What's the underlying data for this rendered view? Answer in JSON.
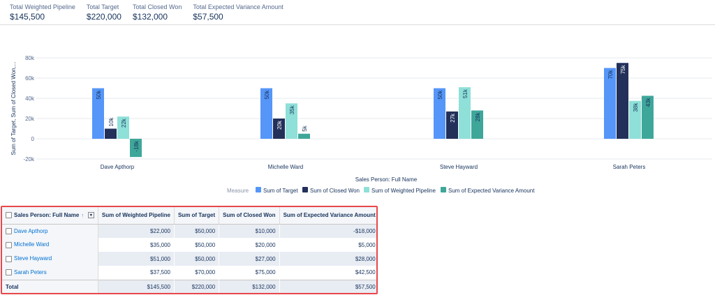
{
  "kpis": [
    {
      "label": "Total Weighted Pipeline",
      "value": "$145,500"
    },
    {
      "label": "Total Target",
      "value": "$220,000"
    },
    {
      "label": "Total Closed Won",
      "value": "$132,000"
    },
    {
      "label": "Total Expected Variance Amount",
      "value": "$57,500"
    }
  ],
  "chart_data": {
    "type": "bar",
    "xlabel": "Sales Person: Full Name",
    "ylabel": "Sum of Target, Sum of Closed Won,...",
    "ylim": [
      -20000,
      80000
    ],
    "yticks": [
      "-20k",
      "0",
      "20k",
      "40k",
      "60k",
      "80k"
    ],
    "grid": true,
    "legend_title": "Measure",
    "legend_position": "bottom",
    "categories": [
      "Dave Apthorp",
      "Michelle Ward",
      "Steve Hayward",
      "Sarah Peters"
    ],
    "series": [
      {
        "name": "Sum of Target",
        "color": "#5596f8",
        "values": [
          50000,
          50000,
          50000,
          70000
        ],
        "labels": [
          "50k",
          "50k",
          "50k",
          "70k"
        ]
      },
      {
        "name": "Sum of Closed Won",
        "color": "#22305a",
        "values": [
          10000,
          20000,
          27000,
          75000
        ],
        "labels": [
          "10k",
          "20k",
          "27k",
          "75k"
        ]
      },
      {
        "name": "Sum of Weighted Pipeline",
        "color": "#8ee0d8",
        "values": [
          22000,
          35000,
          51000,
          37500
        ],
        "labels": [
          "22k",
          "35k",
          "51k",
          "38k"
        ]
      },
      {
        "name": "Sum of Expected Variance Amount",
        "color": "#3fa69a",
        "values": [
          -18000,
          5000,
          28000,
          42500
        ],
        "labels": [
          "-18k",
          "5k",
          "28k",
          "43k"
        ]
      }
    ]
  },
  "table": {
    "headers": [
      "Sales Person: Full Name",
      "Sum of Weighted Pipeline",
      "Sum of Target",
      "Sum of Closed Won",
      "Sum of Expected Variance Amount"
    ],
    "sort_icon": "↑",
    "menu_icon": "▾",
    "rows": [
      [
        "Dave Apthorp",
        "$22,000",
        "$50,000",
        "$10,000",
        "-$18,000"
      ],
      [
        "Michelle Ward",
        "$35,000",
        "$50,000",
        "$20,000",
        "$5,000"
      ],
      [
        "Steve Hayward",
        "$51,000",
        "$50,000",
        "$27,000",
        "$28,000"
      ],
      [
        "Sarah Peters",
        "$37,500",
        "$70,000",
        "$75,000",
        "$42,500"
      ]
    ],
    "total": [
      "Total",
      "$145,500",
      "$220,000",
      "$132,000",
      "$57,500"
    ]
  }
}
